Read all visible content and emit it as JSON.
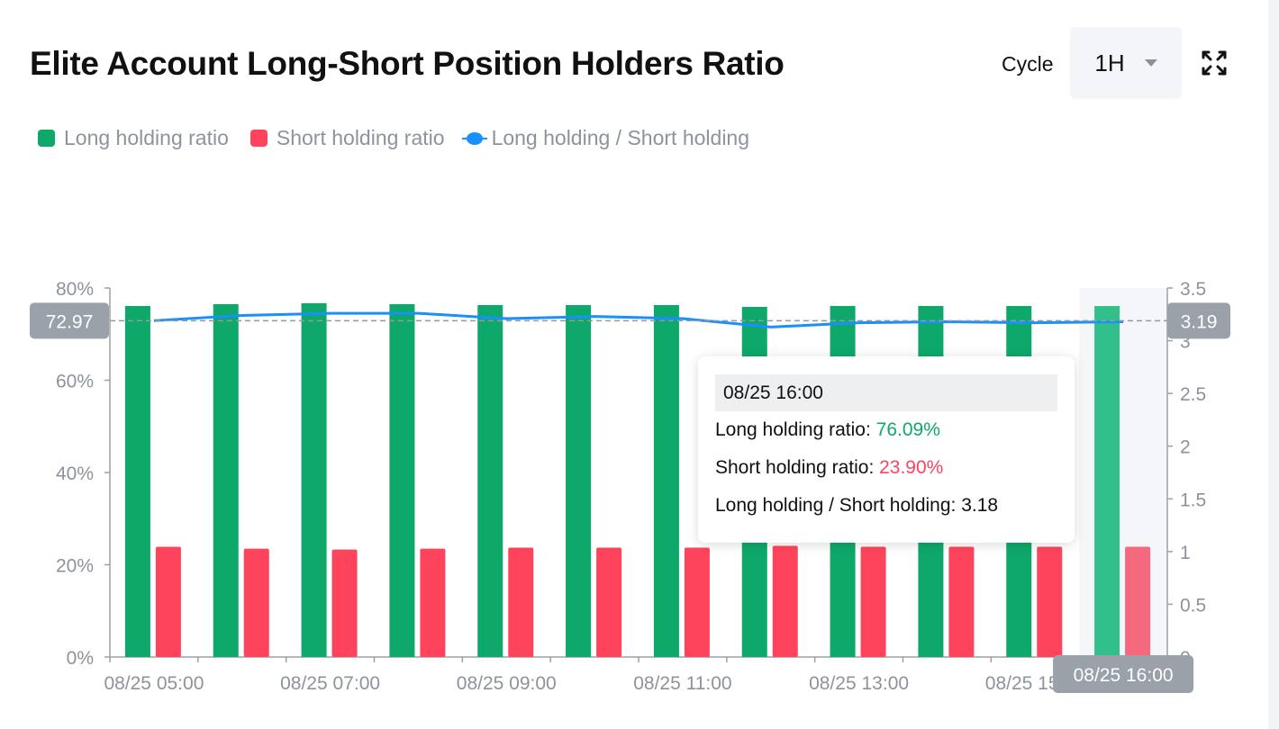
{
  "header": {
    "title": "Elite Account Long-Short Position Holders Ratio",
    "cycle_label": "Cycle",
    "cycle_value": "1H"
  },
  "colors": {
    "long": "#0ea86a",
    "short": "#fe445c",
    "ratio": "#1890ff",
    "axis_tag": "#9aa1a9"
  },
  "legend": [
    "Long holding ratio",
    "Short holding ratio",
    "Long holding / Short holding"
  ],
  "tooltip": {
    "time": "08/25 16:00",
    "long_label": "Long holding ratio: ",
    "long_value": "76.09%",
    "short_label": "Short holding ratio: ",
    "short_value": "23.90%",
    "ratio_label": "Long holding / Short holding: ",
    "ratio_value": "3.18"
  },
  "crosshair": {
    "left_value": "72.97",
    "right_value": "3.19",
    "x_value": "08/25 16:00"
  },
  "chart_data": {
    "type": "bar",
    "categories": [
      "08/25 05:00",
      "08/25 06:00",
      "08/25 07:00",
      "08/25 08:00",
      "08/25 09:00",
      "08/25 10:00",
      "08/25 11:00",
      "08/25 12:00",
      "08/25 13:00",
      "08/25 14:00",
      "08/25 15:00",
      "08/25 16:00"
    ],
    "series": [
      {
        "name": "Long holding ratio",
        "type": "bar",
        "axis": "left",
        "values": [
          76.1,
          76.5,
          76.7,
          76.5,
          76.3,
          76.3,
          76.3,
          75.9,
          76.1,
          76.1,
          76.1,
          76.09
        ]
      },
      {
        "name": "Short holding ratio",
        "type": "bar",
        "axis": "left",
        "values": [
          23.9,
          23.5,
          23.3,
          23.5,
          23.7,
          23.7,
          23.7,
          24.1,
          23.9,
          23.9,
          23.9,
          23.9
        ]
      },
      {
        "name": "Long holding / Short holding",
        "type": "line",
        "axis": "right",
        "values": [
          3.19,
          3.24,
          3.26,
          3.26,
          3.21,
          3.23,
          3.21,
          3.13,
          3.17,
          3.18,
          3.17,
          3.18
        ]
      }
    ],
    "x_tick_labels": [
      "08/25 05:00",
      "08/25 07:00",
      "08/25 09:00",
      "08/25 11:00",
      "08/25 13:00",
      "08/25 15:00"
    ],
    "y_left": {
      "ticks": [
        "0%",
        "20%",
        "40%",
        "60%",
        "80%"
      ],
      "range": [
        0,
        80
      ]
    },
    "y_right": {
      "ticks": [
        "0",
        "0.5",
        "1",
        "1.5",
        "2",
        "2.5",
        "3",
        "3.5"
      ],
      "range": [
        0,
        3.5
      ]
    },
    "highlighted_category": "08/25 16:00",
    "legend_position": "top-left"
  }
}
